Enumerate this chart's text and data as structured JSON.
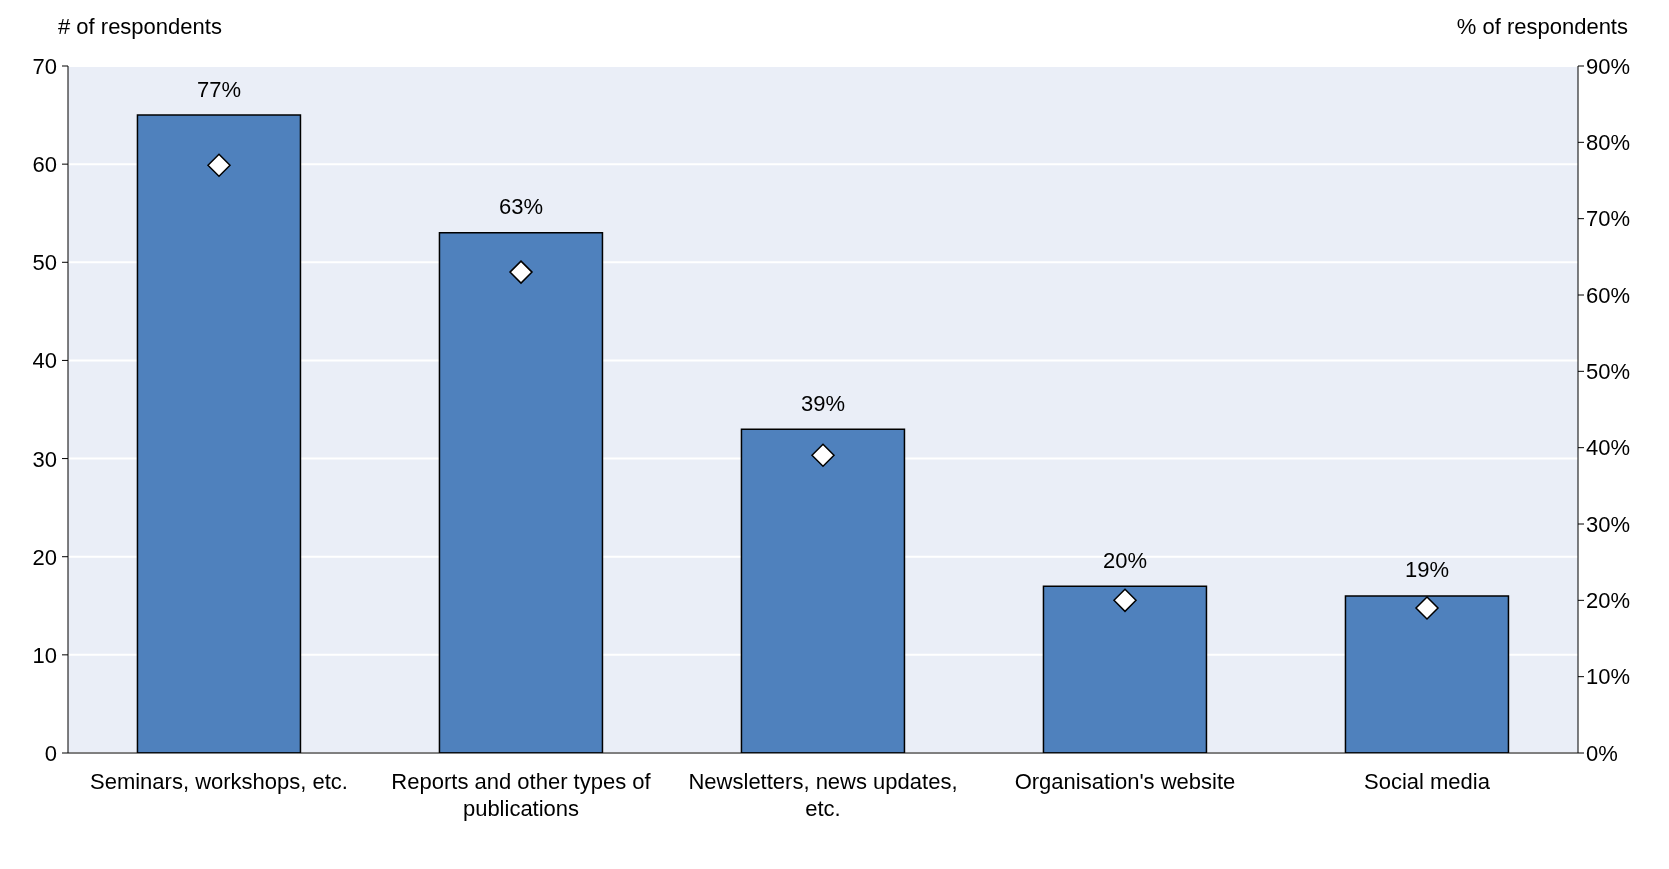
{
  "chart_data": {
    "type": "bar",
    "ylabel": "# of respondents",
    "y2label": "% of respondents",
    "categories": [
      "Seminars, workshops, etc.",
      "Reports and other types of publications",
      "Newsletters, news updates, etc.",
      "Organisation's website",
      "Social media"
    ],
    "series": [
      {
        "color": "#4f81bd",
        "values": [
          65,
          53,
          33,
          17,
          16
        ]
      },
      {
        "type": "scatter",
        "axis": "y2",
        "color": "#ffffff",
        "marker": "diamond",
        "values": [
          77,
          63,
          39,
          20,
          19
        ],
        "value_labels": [
          "77%",
          "63%",
          "39%",
          "20%",
          "19%"
        ]
      }
    ],
    "ylim": [
      0,
      70
    ],
    "yticks": [
      0,
      10,
      20,
      30,
      40,
      50,
      60,
      70
    ],
    "y2lim": [
      0,
      90
    ],
    "y2ticks": [
      {
        "value": 0,
        "label": "0%"
      },
      {
        "value": 10,
        "label": "10%"
      },
      {
        "value": 20,
        "label": "20%"
      },
      {
        "value": 30,
        "label": "30%"
      },
      {
        "value": 40,
        "label": "40%"
      },
      {
        "value": 50,
        "label": "50%"
      },
      {
        "value": 60,
        "label": "60%"
      },
      {
        "value": 70,
        "label": "70%"
      },
      {
        "value": 80,
        "label": "80%"
      },
      {
        "value": 90,
        "label": "90%"
      }
    ],
    "grid": "y",
    "legend": false
  }
}
